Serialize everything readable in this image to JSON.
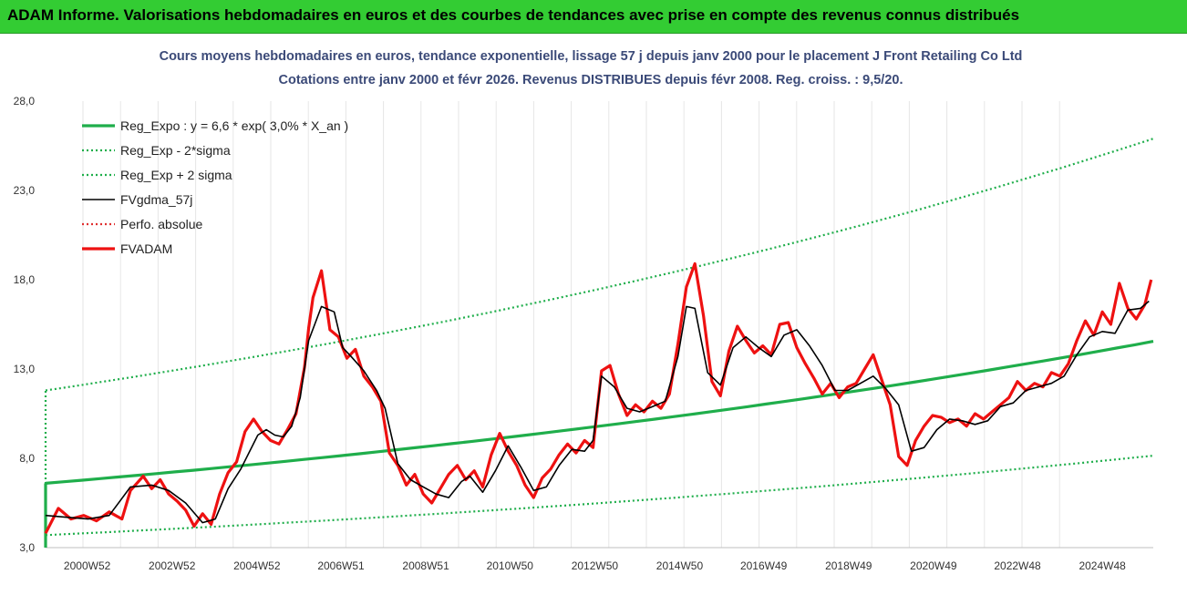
{
  "banner": {
    "title": "ADAM Informe. Valorisations hebdomadaires en euros et des courbes de tendances avec prise en compte des revenus connus distribués"
  },
  "chart_data": {
    "type": "line",
    "title": "Cours moyens hebdomadaires en euros, tendance exponentielle, lissage 57 j depuis janv 2000 pour le placement J Front Retailing Co Ltd",
    "subtitle": "Cotations entre janv 2000 et févr 2026. Revenus DISTRIBUES depuis févr 2008.  Reg. croiss. : 9,5/20.",
    "xlabel": "",
    "ylabel": "",
    "ylim": [
      3.0,
      28.0
    ],
    "yticks": [
      "3,0",
      "8,0",
      "13,0",
      "18,0",
      "23,0",
      "28,0"
    ],
    "xlim": [
      2000.0,
      2026.1
    ],
    "xticks": [
      {
        "label": "2000W52",
        "x": 2000.98
      },
      {
        "label": "2002W52",
        "x": 2002.98
      },
      {
        "label": "2004W52",
        "x": 2004.98
      },
      {
        "label": "2006W51",
        "x": 2006.96
      },
      {
        "label": "2008W51",
        "x": 2008.96
      },
      {
        "label": "2010W50",
        "x": 2010.94
      },
      {
        "label": "2012W50",
        "x": 2012.94
      },
      {
        "label": "2014W50",
        "x": 2014.94
      },
      {
        "label": "2016W49",
        "x": 2016.92
      },
      {
        "label": "2018W49",
        "x": 2018.92
      },
      {
        "label": "2020W49",
        "x": 2020.92
      },
      {
        "label": "2022W48",
        "x": 2022.9
      },
      {
        "label": "2024W48",
        "x": 2024.9
      }
    ],
    "grid": "vertical",
    "legend_position": "top-left",
    "series": [
      {
        "name": "Reg_Expo : y = 6,6 * exp( 3,0% *  X_an )",
        "color": "#1fae4b",
        "style": "solid-thick",
        "x": [
          2000.0,
          2026.1
        ],
        "y": [
          6.6,
          14.55
        ]
      },
      {
        "name": "Reg_Exp - 2*sigma",
        "color": "#1fae4b",
        "style": "dotted",
        "x": [
          2000.0,
          2026.1
        ],
        "y": [
          3.7,
          8.15
        ]
      },
      {
        "name": "Reg_Exp + 2 sigma",
        "color": "#1fae4b",
        "style": "dotted",
        "x": [
          2000.0,
          2026.1
        ],
        "y": [
          11.8,
          25.9
        ]
      },
      {
        "name": "FVgdma_57j",
        "color": "#000000",
        "style": "solid",
        "x": [
          2000.0,
          2000.5,
          2001.0,
          2001.5,
          2002.0,
          2002.5,
          2002.9,
          2003.3,
          2003.7,
          2004.0,
          2004.3,
          2004.6,
          2005.0,
          2005.2,
          2005.4,
          2005.6,
          2005.8,
          2006.0,
          2006.2,
          2006.5,
          2006.8,
          2007.0,
          2007.2,
          2007.5,
          2007.8,
          2008.0,
          2008.3,
          2008.6,
          2008.9,
          2009.2,
          2009.5,
          2009.8,
          2010.0,
          2010.3,
          2010.6,
          2010.9,
          2011.2,
          2011.5,
          2011.8,
          2012.1,
          2012.4,
          2012.7,
          2012.9,
          2013.1,
          2013.4,
          2013.7,
          2014.0,
          2014.3,
          2014.6,
          2014.9,
          2015.1,
          2015.3,
          2015.6,
          2015.9,
          2016.2,
          2016.5,
          2016.8,
          2017.1,
          2017.4,
          2017.7,
          2018.0,
          2018.3,
          2018.6,
          2018.9,
          2019.2,
          2019.5,
          2019.8,
          2020.1,
          2020.4,
          2020.7,
          2021.0,
          2021.3,
          2021.6,
          2021.9,
          2022.2,
          2022.5,
          2022.8,
          2023.1,
          2023.4,
          2023.7,
          2024.0,
          2024.3,
          2024.6,
          2024.9,
          2025.2,
          2025.5,
          2025.8,
          2026.0
        ],
        "y": [
          4.8,
          4.7,
          4.6,
          4.8,
          6.4,
          6.5,
          6.2,
          5.5,
          4.4,
          4.6,
          6.3,
          7.4,
          9.3,
          9.6,
          9.3,
          9.2,
          9.8,
          11.4,
          14.6,
          16.5,
          16.2,
          14.2,
          13.7,
          12.9,
          11.8,
          10.8,
          7.7,
          6.8,
          6.4,
          6.0,
          5.8,
          6.7,
          7.0,
          6.1,
          7.3,
          8.7,
          7.5,
          6.2,
          6.4,
          7.6,
          8.5,
          8.4,
          9.0,
          12.6,
          12.0,
          10.8,
          10.6,
          10.9,
          11.2,
          13.7,
          16.5,
          16.4,
          12.8,
          12.1,
          14.2,
          14.8,
          14.2,
          13.7,
          14.9,
          15.2,
          14.3,
          13.2,
          11.8,
          11.8,
          12.2,
          12.6,
          11.9,
          11.0,
          8.4,
          8.6,
          9.6,
          10.2,
          10.1,
          9.9,
          10.1,
          10.9,
          11.1,
          11.8,
          12.0,
          12.2,
          12.6,
          13.8,
          14.8,
          15.1,
          15.0,
          16.3,
          16.4,
          16.8
        ]
      },
      {
        "name": "Perfo. absolue",
        "color": "#e03030",
        "style": "dotted",
        "x": [],
        "y": []
      },
      {
        "name": "FVADAM",
        "color": "#ee1111",
        "style": "solid-thick",
        "x": [
          2000.0,
          2000.3,
          2000.6,
          2000.9,
          2001.2,
          2001.5,
          2001.8,
          2002.0,
          2002.3,
          2002.5,
          2002.7,
          2002.9,
          2003.1,
          2003.3,
          2003.5,
          2003.7,
          2003.9,
          2004.1,
          2004.3,
          2004.5,
          2004.7,
          2004.9,
          2005.1,
          2005.3,
          2005.5,
          2005.7,
          2005.9,
          2006.1,
          2006.2,
          2006.3,
          2006.5,
          2006.7,
          2006.9,
          2007.1,
          2007.3,
          2007.5,
          2007.7,
          2007.9,
          2008.1,
          2008.3,
          2008.5,
          2008.7,
          2008.9,
          2009.1,
          2009.3,
          2009.5,
          2009.7,
          2009.9,
          2010.1,
          2010.3,
          2010.5,
          2010.7,
          2010.9,
          2011.1,
          2011.3,
          2011.5,
          2011.7,
          2011.9,
          2012.1,
          2012.3,
          2012.5,
          2012.7,
          2012.9,
          2013.1,
          2013.3,
          2013.5,
          2013.7,
          2013.9,
          2014.1,
          2014.3,
          2014.5,
          2014.7,
          2014.9,
          2015.1,
          2015.3,
          2015.5,
          2015.7,
          2015.9,
          2016.1,
          2016.3,
          2016.5,
          2016.7,
          2016.9,
          2017.1,
          2017.3,
          2017.5,
          2017.7,
          2017.9,
          2018.1,
          2018.3,
          2018.5,
          2018.7,
          2018.9,
          2019.1,
          2019.3,
          2019.5,
          2019.7,
          2019.9,
          2020.1,
          2020.3,
          2020.5,
          2020.7,
          2020.9,
          2021.1,
          2021.3,
          2021.5,
          2021.7,
          2021.9,
          2022.1,
          2022.3,
          2022.5,
          2022.7,
          2022.9,
          2023.1,
          2023.3,
          2023.5,
          2023.7,
          2023.9,
          2024.1,
          2024.3,
          2024.5,
          2024.7,
          2024.9,
          2025.1,
          2025.3,
          2025.5,
          2025.7,
          2025.9,
          2026.05
        ],
        "y": [
          3.8,
          5.2,
          4.6,
          4.8,
          4.5,
          5.0,
          4.6,
          6.2,
          7.0,
          6.3,
          6.8,
          6.0,
          5.6,
          5.1,
          4.2,
          4.9,
          4.3,
          6.0,
          7.2,
          7.8,
          9.5,
          10.2,
          9.5,
          9.0,
          8.8,
          9.6,
          10.5,
          13.1,
          15.3,
          17.0,
          18.5,
          15.2,
          14.8,
          13.6,
          14.1,
          12.6,
          12.0,
          11.2,
          8.3,
          7.6,
          6.5,
          7.1,
          6.0,
          5.5,
          6.3,
          7.1,
          7.6,
          6.8,
          7.3,
          6.4,
          8.2,
          9.4,
          8.4,
          7.6,
          6.5,
          5.8,
          6.9,
          7.4,
          8.2,
          8.8,
          8.3,
          9.0,
          8.6,
          12.9,
          13.2,
          11.6,
          10.4,
          11.0,
          10.6,
          11.2,
          10.8,
          11.6,
          14.4,
          17.6,
          18.9,
          16.0,
          12.3,
          11.5,
          14.0,
          15.4,
          14.6,
          13.9,
          14.3,
          13.8,
          15.5,
          15.6,
          14.2,
          13.3,
          12.5,
          11.6,
          12.2,
          11.4,
          12.0,
          12.2,
          13.0,
          13.8,
          12.4,
          11.0,
          8.1,
          7.6,
          9.0,
          9.8,
          10.4,
          10.3,
          10.0,
          10.2,
          9.8,
          10.5,
          10.2,
          10.6,
          11.0,
          11.4,
          12.3,
          11.8,
          12.2,
          12.0,
          12.8,
          12.6,
          13.3,
          14.6,
          15.7,
          14.9,
          16.2,
          15.5,
          17.8,
          16.4,
          15.8,
          16.6,
          18.0
        ]
      }
    ]
  }
}
